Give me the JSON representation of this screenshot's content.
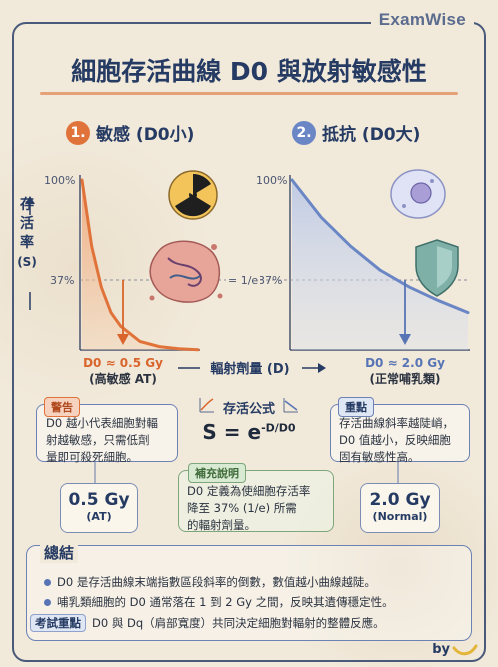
{
  "brand": "ExamWise",
  "title": "細胞存活曲線 D0 與放射敏感性",
  "panels": {
    "left": {
      "number": "1.",
      "title": "敏感 (D0小)",
      "d0": "D0 ≈ 0.5 Gy",
      "d0_desc": "(高敏感 AT)"
    },
    "right": {
      "number": "2.",
      "title": "抵抗 (D0大)",
      "d0": "D0 ≈ 2.0 Gy",
      "d0_desc": "(正常哺乳類)"
    }
  },
  "axes": {
    "y_label_chars": [
      "存",
      "活",
      "率",
      "(S)"
    ],
    "y_top_left": "100%",
    "y_top_right": "100%",
    "y_mid_left": "37%",
    "y_mid_right": "37%",
    "mid_ref": "= 1/e",
    "x_label": "輻射劑量 (D)"
  },
  "warning": {
    "tag": "警告",
    "lines": [
      "D0 越小代表細胞對輻",
      "射越敏感，只需低劑",
      "量即可殺死細胞。"
    ]
  },
  "keypoint": {
    "tag": "重點",
    "lines": [
      "存活曲線斜率越陡峭，",
      "D0 值越小，反映細胞",
      "固有敏感性高。"
    ]
  },
  "formula": {
    "title": "存活公式",
    "base": "S = e",
    "exponent": "-D/D0"
  },
  "supplement": {
    "tag": "補充說明",
    "lines": [
      "D0 定義為使細胞存活率",
      "降至 37% (1/e) 所需",
      "的輻射劑量。"
    ]
  },
  "value_left": {
    "main": "0.5 Gy",
    "sub": "(AT)"
  },
  "value_right": {
    "main": "2.0 Gy",
    "sub": "(Normal)"
  },
  "summary": {
    "title": "總結",
    "bullets": [
      "D0 是存活曲線末端指數區段斜率的倒數，數值越小曲線越陡。",
      "哺乳類細胞的 D0 通常落在 1 到 2 Gy 之間，反映其遺傳穩定性。"
    ],
    "exam_tag": "考試重點",
    "exam_text": "D0 與 Dq（肩部寬度）共同決定細胞對輻射的整體反應。"
  },
  "byline": "by",
  "colors": {
    "sensitive": "#e0733a",
    "resistant": "#6a86c4",
    "navy": "#263b63"
  },
  "chart_data": [
    {
      "type": "area",
      "title": "敏感 (D0小)",
      "xlabel": "輻射劑量 (D)",
      "ylabel": "存活率 (S)",
      "x": [
        0,
        0.25,
        0.5,
        0.75,
        1.0,
        1.5,
        2.0,
        2.5,
        3.0
      ],
      "values": [
        1.0,
        0.61,
        0.37,
        0.22,
        0.14,
        0.05,
        0.02,
        0.007,
        0.002
      ],
      "ylim": [
        0,
        1
      ],
      "reference_level": 0.37
    },
    {
      "type": "area",
      "title": "抵抗 (D0大)",
      "xlabel": "輻射劑量 (D)",
      "ylabel": "存活率 (S)",
      "x": [
        0,
        0.5,
        1.0,
        1.5,
        2.0,
        2.5,
        3.0
      ],
      "values": [
        1.0,
        0.78,
        0.61,
        0.47,
        0.37,
        0.29,
        0.22
      ],
      "ylim": [
        0,
        1
      ],
      "reference_level": 0.37
    }
  ]
}
